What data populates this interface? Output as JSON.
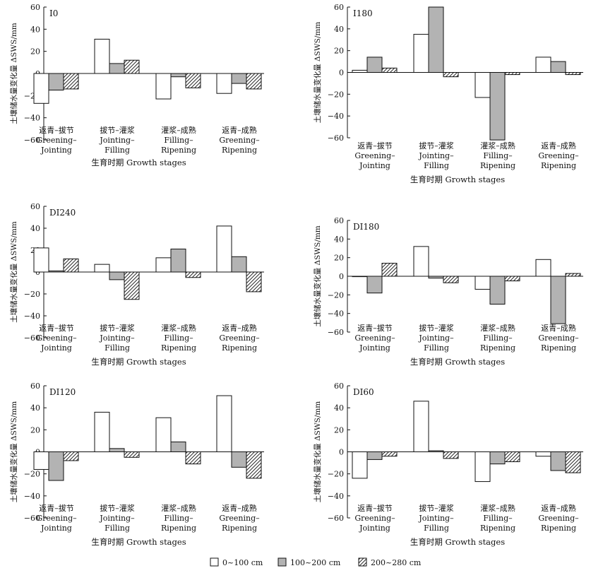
{
  "figure": {
    "ylabel": "土壤储水量变化量 ΔSWS/mm",
    "xlabel": "生育时期 Growth stages",
    "categories": [
      {
        "zh": "返青–拔节",
        "en1": "Greening–",
        "en2": "Jointing"
      },
      {
        "zh": "拔节–灌浆",
        "en1": "Jointing–",
        "en2": "Filling"
      },
      {
        "zh": "灌浆–成熟",
        "en1": "Filling–",
        "en2": "Ripening"
      },
      {
        "zh": "返青–成熟",
        "en1": "Greening–",
        "en2": "Ripening"
      }
    ],
    "legend": [
      {
        "label": "0~100 cm",
        "fill": "#ffffff",
        "pattern": "none"
      },
      {
        "label": "100~200 cm",
        "fill": "#b3b3b3",
        "pattern": "none"
      },
      {
        "label": "200~280 cm",
        "fill": "#ffffff",
        "pattern": "diagonal-hatch"
      }
    ]
  },
  "chart_data": [
    {
      "type": "bar",
      "panel_label": "I0",
      "ylim": [
        -60,
        60
      ],
      "yticks": [
        -60,
        -40,
        -20,
        0,
        20,
        40,
        60
      ],
      "categories": [
        "返青–拔节 Greening–Jointing",
        "拔节–灌浆 Jointing–Filling",
        "灌浆–成熟 Filling–Ripening",
        "返青–成熟 Greening–Ripening"
      ],
      "series": [
        {
          "name": "0~100 cm",
          "values": [
            -27,
            31,
            -23,
            -18
          ]
        },
        {
          "name": "100~200 cm",
          "values": [
            -15,
            9,
            -3,
            -9
          ]
        },
        {
          "name": "200~280 cm",
          "values": [
            -14,
            12,
            -13,
            -14
          ]
        }
      ]
    },
    {
      "type": "bar",
      "panel_label": "I180",
      "ylim": [
        -60,
        60
      ],
      "yticks": [
        -60,
        -40,
        -20,
        0,
        20,
        40,
        60
      ],
      "categories": [
        "返青–拔节 Greening–Jointing",
        "拔节–灌浆 Jointing–Filling",
        "灌浆–成熟 Filling–Ripening",
        "返青–成熟 Greening–Ripening"
      ],
      "series": [
        {
          "name": "0~100 cm",
          "values": [
            2,
            35,
            -23,
            14
          ]
        },
        {
          "name": "100~200 cm",
          "values": [
            14,
            60,
            -62,
            10
          ]
        },
        {
          "name": "200~280 cm",
          "values": [
            4,
            -4,
            -2,
            -2
          ]
        }
      ]
    },
    {
      "type": "bar",
      "panel_label": "DI240",
      "ylim": [
        -60,
        60
      ],
      "yticks": [
        -60,
        -40,
        -20,
        0,
        20,
        40,
        60
      ],
      "categories": [
        "返青–拔节 Greening–Jointing",
        "拔节–灌浆 Jointing–Filling",
        "灌浆–成熟 Filling–Ripening",
        "返青–成熟 Greening–Ripening"
      ],
      "series": [
        {
          "name": "0~100 cm",
          "values": [
            22,
            7,
            13,
            42
          ]
        },
        {
          "name": "100~200 cm",
          "values": [
            1,
            -7,
            21,
            14
          ]
        },
        {
          "name": "200~280 cm",
          "values": [
            12,
            -25,
            -5,
            -18
          ]
        }
      ]
    },
    {
      "type": "bar",
      "panel_label": "DI180",
      "ylim": [
        -60,
        60
      ],
      "yticks": [
        -60,
        -40,
        -20,
        0,
        20,
        40,
        60
      ],
      "categories": [
        "返青–拔节 Greening–Jointing",
        "拔节–灌浆 Jointing–Filling",
        "灌浆–成熟 Filling–Ripening",
        "返青–成熟 Greening–Ripening"
      ],
      "series": [
        {
          "name": "0~100 cm",
          "values": [
            0,
            32,
            -14,
            18
          ]
        },
        {
          "name": "100~200 cm",
          "values": [
            -18,
            -2,
            -30,
            -51
          ]
        },
        {
          "name": "200~280 cm",
          "values": [
            14,
            -7,
            -5,
            3
          ]
        }
      ]
    },
    {
      "type": "bar",
      "panel_label": "DI120",
      "ylim": [
        -60,
        60
      ],
      "yticks": [
        -60,
        -40,
        -20,
        0,
        20,
        40,
        60
      ],
      "categories": [
        "返青–拔节 Greening–Jointing",
        "拔节–灌浆 Jointing–Filling",
        "灌浆–成熟 Filling–Ripening",
        "返青–成熟 Greening–Ripening"
      ],
      "series": [
        {
          "name": "0~100 cm",
          "values": [
            -16,
            36,
            31,
            51
          ]
        },
        {
          "name": "100~200 cm",
          "values": [
            -26,
            3,
            9,
            -14
          ]
        },
        {
          "name": "200~280 cm",
          "values": [
            -8,
            -5,
            -11,
            -24
          ]
        }
      ]
    },
    {
      "type": "bar",
      "panel_label": "DI60",
      "ylim": [
        -60,
        60
      ],
      "yticks": [
        -60,
        -40,
        -20,
        0,
        20,
        40,
        60
      ],
      "categories": [
        "返青–拔节 Greening–Jointing",
        "拔节–灌浆 Jointing–Filling",
        "灌浆–成熟 Filling–Ripening",
        "返青–成熟 Greening–Ripening"
      ],
      "series": [
        {
          "name": "0~100 cm",
          "values": [
            -24,
            46,
            -27,
            -4
          ]
        },
        {
          "name": "100~200 cm",
          "values": [
            -7,
            1,
            -11,
            -17
          ]
        },
        {
          "name": "200~280 cm",
          "values": [
            -4,
            -6,
            -9,
            -19
          ]
        }
      ]
    }
  ]
}
